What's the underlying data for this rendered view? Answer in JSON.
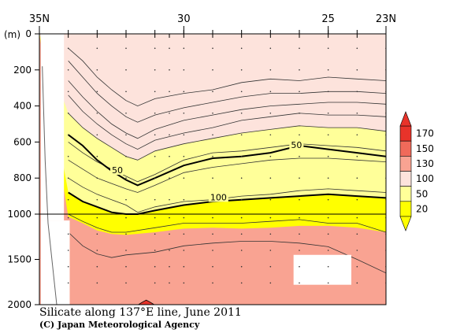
{
  "chart_data": {
    "type": "heatmap",
    "title": "Silicate along 137°E line, June 2011",
    "credit": "(C) Japan Meteorological Agency",
    "x_axis": {
      "ticks": [
        {
          "lat": 35,
          "label": "35N"
        },
        {
          "lat": 30,
          "label": "30"
        },
        {
          "lat": 25,
          "label": "25"
        },
        {
          "lat": 23,
          "label": "23N"
        }
      ],
      "range": [
        35,
        23
      ]
    },
    "y_axis": {
      "unit": "(m)",
      "upper_range": [
        0,
        1000
      ],
      "lower_range": [
        1000,
        2000
      ],
      "ticks": [
        {
          "depth": 0,
          "label": "0"
        },
        {
          "depth": 200,
          "label": "200"
        },
        {
          "depth": 400,
          "label": "400"
        },
        {
          "depth": 600,
          "label": "600"
        },
        {
          "depth": 800,
          "label": "800"
        },
        {
          "depth": 1000,
          "label": "1000"
        },
        {
          "depth": 1500,
          "label": "1500"
        },
        {
          "depth": 2000,
          "label": "2000"
        }
      ]
    },
    "station_lats": [
      34,
      33,
      32,
      31,
      30.5,
      30,
      29,
      28,
      27,
      26,
      25,
      24,
      23
    ],
    "colorbar": {
      "levels": [
        {
          "value": "20",
          "color": "#ffff00"
        },
        {
          "value": "50",
          "color": "#ffff99"
        },
        {
          "value": "100",
          "color": "#fde3dc"
        },
        {
          "value": "130",
          "color": "#f9a392"
        },
        {
          "value": "150",
          "color": "#f06a5a"
        },
        {
          "value": "170",
          "color": "#e8332a"
        }
      ],
      "bands": [
        "#ffff00",
        "#ffff99",
        "#fde3dc",
        "#f9a392",
        "#f06a5a",
        "#e8332a"
      ]
    },
    "contour_labels": [
      {
        "text": "50",
        "lat": 32.3,
        "depth": 760
      },
      {
        "text": "50",
        "lat": 26.1,
        "depth": 620
      },
      {
        "text": "100",
        "lat": 28.8,
        "depth": 910
      }
    ],
    "isolines": [
      [
        [
          34,
          80
        ],
        [
          33.5,
          150
        ],
        [
          33,
          240
        ],
        [
          32.5,
          310
        ],
        [
          32,
          370
        ],
        [
          31.6,
          400
        ],
        [
          31,
          360
        ],
        [
          30,
          330
        ],
        [
          29,
          310
        ],
        [
          28,
          270
        ],
        [
          27,
          250
        ],
        [
          26,
          260
        ],
        [
          25,
          240
        ],
        [
          24,
          250
        ],
        [
          23,
          260
        ]
      ],
      [
        [
          34,
          150
        ],
        [
          33.5,
          240
        ],
        [
          33,
          330
        ],
        [
          32.5,
          400
        ],
        [
          32,
          460
        ],
        [
          31.6,
          490
        ],
        [
          31,
          450
        ],
        [
          30,
          410
        ],
        [
          29,
          380
        ],
        [
          28,
          350
        ],
        [
          27,
          330
        ],
        [
          26,
          330
        ],
        [
          25,
          320
        ],
        [
          24,
          320
        ],
        [
          23,
          330
        ]
      ],
      [
        [
          34,
          260
        ],
        [
          33.5,
          350
        ],
        [
          33,
          430
        ],
        [
          32.5,
          500
        ],
        [
          32,
          550
        ],
        [
          31.6,
          580
        ],
        [
          31,
          530
        ],
        [
          30,
          480
        ],
        [
          29,
          450
        ],
        [
          28,
          420
        ],
        [
          27,
          400
        ],
        [
          26,
          390
        ],
        [
          25,
          380
        ],
        [
          24,
          380
        ],
        [
          23,
          390
        ]
      ],
      [
        [
          34,
          340
        ],
        [
          33.5,
          430
        ],
        [
          33,
          500
        ],
        [
          32.5,
          560
        ],
        [
          32,
          610
        ],
        [
          31.6,
          640
        ],
        [
          31,
          590
        ],
        [
          30,
          550
        ],
        [
          29,
          520
        ],
        [
          28,
          480
        ],
        [
          27,
          460
        ],
        [
          26,
          440
        ],
        [
          25,
          450
        ],
        [
          24,
          450
        ],
        [
          23,
          460
        ]
      ],
      [
        [
          34,
          440
        ],
        [
          33.5,
          520
        ],
        [
          33,
          580
        ],
        [
          32.5,
          630
        ],
        [
          32,
          680
        ],
        [
          31.6,
          700
        ],
        [
          31,
          650
        ],
        [
          30,
          610
        ],
        [
          29,
          580
        ],
        [
          28,
          550
        ],
        [
          27,
          530
        ],
        [
          26,
          510
        ],
        [
          25,
          520
        ],
        [
          24,
          520
        ],
        [
          23,
          540
        ]
      ],
      [
        [
          34,
          600
        ],
        [
          33.5,
          660
        ],
        [
          33,
          710
        ],
        [
          32.5,
          750
        ],
        [
          32,
          790
        ],
        [
          31.6,
          820
        ],
        [
          31,
          780
        ],
        [
          30,
          700
        ],
        [
          29,
          660
        ],
        [
          28,
          650
        ],
        [
          27,
          630
        ],
        [
          26,
          610
        ],
        [
          25,
          620
        ],
        [
          24,
          630
        ],
        [
          23,
          650
        ]
      ],
      [
        [
          34,
          700
        ],
        [
          33.5,
          750
        ],
        [
          33,
          800
        ],
        [
          32.5,
          830
        ],
        [
          32,
          860
        ],
        [
          31.6,
          880
        ],
        [
          31,
          840
        ],
        [
          30,
          770
        ],
        [
          29,
          740
        ],
        [
          28,
          720
        ],
        [
          27,
          700
        ],
        [
          26,
          690
        ],
        [
          25,
          690
        ],
        [
          24,
          700
        ],
        [
          23,
          710
        ]
      ],
      [
        [
          34,
          800
        ],
        [
          33.5,
          850
        ],
        [
          33,
          890
        ],
        [
          32.5,
          920
        ],
        [
          32,
          950
        ],
        [
          31.6,
          990
        ],
        [
          31,
          960
        ],
        [
          30,
          930
        ],
        [
          29,
          920
        ],
        [
          28,
          900
        ],
        [
          27,
          890
        ],
        [
          26,
          870
        ],
        [
          25,
          860
        ],
        [
          24,
          870
        ],
        [
          23,
          880
        ]
      ],
      [
        [
          34,
          1000
        ],
        [
          33.5,
          1080
        ],
        [
          33,
          1150
        ],
        [
          32.5,
          1200
        ],
        [
          32,
          1200
        ],
        [
          31,
          1150
        ],
        [
          30,
          1100
        ],
        [
          29,
          1100
        ],
        [
          28,
          1100
        ],
        [
          27,
          1080
        ],
        [
          26,
          1060
        ],
        [
          25,
          1100
        ],
        [
          24,
          1100
        ],
        [
          23,
          1200
        ]
      ],
      [
        [
          34,
          1200
        ],
        [
          33.5,
          1350
        ],
        [
          33,
          1440
        ],
        [
          32.5,
          1480
        ],
        [
          32,
          1450
        ],
        [
          31,
          1420
        ],
        [
          30,
          1350
        ],
        [
          29,
          1320
        ],
        [
          28,
          1300
        ],
        [
          27,
          1300
        ],
        [
          26,
          1320
        ],
        [
          25,
          1360
        ],
        [
          24,
          1500
        ],
        [
          23,
          1650
        ]
      ]
    ],
    "bold_isolines": [
      {
        "level": "50",
        "points": [
          [
            34,
            560
          ],
          [
            33.5,
            620
          ],
          [
            33,
            700
          ],
          [
            32.5,
            760
          ],
          [
            32,
            810
          ],
          [
            31.6,
            840
          ],
          [
            31,
            800
          ],
          [
            30,
            730
          ],
          [
            29,
            690
          ],
          [
            28,
            680
          ],
          [
            27,
            660
          ],
          [
            26,
            620
          ],
          [
            25,
            640
          ],
          [
            24,
            660
          ],
          [
            23,
            680
          ]
        ]
      },
      {
        "level": "100",
        "points": [
          [
            34,
            880
          ],
          [
            33.5,
            930
          ],
          [
            33,
            960
          ],
          [
            32.5,
            990
          ],
          [
            32,
            1000
          ],
          [
            31.6,
            1000
          ],
          [
            31,
            980
          ],
          [
            30,
            950
          ],
          [
            29,
            930
          ],
          [
            28,
            920
          ],
          [
            27,
            910
          ],
          [
            26,
            900
          ],
          [
            25,
            890
          ],
          [
            24,
            900
          ],
          [
            23,
            910
          ]
        ]
      }
    ],
    "zone_boundaries": [
      {
        "level": "20/50",
        "points": [
          [
            34,
            440
          ],
          [
            33.5,
            520
          ],
          [
            33,
            580
          ],
          [
            32.5,
            630
          ],
          [
            32,
            680
          ],
          [
            31.6,
            700
          ],
          [
            31,
            650
          ],
          [
            30,
            610
          ],
          [
            29,
            580
          ],
          [
            28,
            550
          ],
          [
            27,
            530
          ],
          [
            26,
            510
          ],
          [
            25,
            520
          ],
          [
            24,
            520
          ],
          [
            23,
            540
          ]
        ]
      },
      {
        "level": "50/100",
        "points": [
          [
            34,
            880
          ],
          [
            33.5,
            930
          ],
          [
            33,
            960
          ],
          [
            32.5,
            990
          ],
          [
            32,
            1000
          ],
          [
            31.6,
            1000
          ],
          [
            31,
            980
          ],
          [
            30,
            950
          ],
          [
            29,
            930
          ],
          [
            28,
            920
          ],
          [
            27,
            910
          ],
          [
            26,
            900
          ],
          [
            25,
            890
          ],
          [
            24,
            900
          ],
          [
            23,
            910
          ]
        ]
      },
      {
        "level": "100/130",
        "points": [
          [
            34,
            1030
          ],
          [
            33.5,
            1100
          ],
          [
            33,
            1180
          ],
          [
            32.5,
            1220
          ],
          [
            32,
            1230
          ],
          [
            31,
            1200
          ],
          [
            30,
            1160
          ],
          [
            29,
            1150
          ],
          [
            28,
            1160
          ],
          [
            27,
            1150
          ],
          [
            26,
            1130
          ],
          [
            25,
            1130
          ],
          [
            24,
            1150
          ],
          [
            23,
            1200
          ]
        ]
      }
    ],
    "missing_regions": [
      {
        "lat": [
          34.95,
          34.15
        ],
        "depth": [
          0,
          1070
        ]
      },
      {
        "lat": [
          34.95,
          33.95
        ],
        "depth": [
          1070,
          2000
        ]
      },
      {
        "lat": [
          26.2,
          24.2
        ],
        "depth": [
          1450,
          1780
        ]
      }
    ],
    "max_patch": {
      "lat": 31.3,
      "depth_top": 1950
    }
  }
}
